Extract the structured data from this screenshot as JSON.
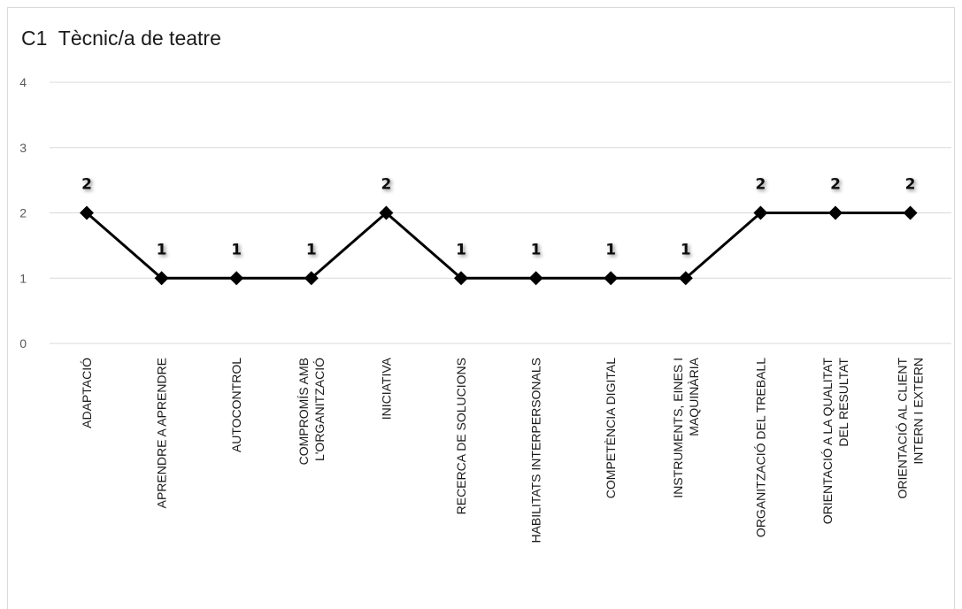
{
  "chart_data": {
    "type": "line",
    "title": "C1  Tècnic/a de teatre",
    "xlabel": "",
    "ylabel": "",
    "ylim": [
      0,
      4
    ],
    "yticks": [
      0,
      1,
      2,
      3,
      4
    ],
    "grid": true,
    "legend": "none",
    "categories": [
      [
        "ADAPTACIÓ"
      ],
      [
        "APRENDRE A APRENDRE"
      ],
      [
        "AUTOCONTROL"
      ],
      [
        "COMPROMÍS AMB",
        "L'ORGANITZACIÓ"
      ],
      [
        "INICIATIVA"
      ],
      [
        "RECERCA DE SOLUCIONS"
      ],
      [
        "HABILITATS INTERPERSONALS"
      ],
      [
        "COMPETÈNCIA DIGITAL"
      ],
      [
        "INSTRUMENTS, EINES I",
        "MAQUINÀRIA"
      ],
      [
        "ORGANITZACIÓ DEL TREBALL"
      ],
      [
        "ORIENTACIÓ A LA QUALITAT",
        "DEL RESULTAT"
      ],
      [
        "ORIENTACIÓ AL CLIENT",
        "INTERN I EXTERN"
      ]
    ],
    "series": [
      {
        "values": [
          2,
          1,
          1,
          1,
          2,
          1,
          1,
          1,
          1,
          2,
          2,
          2
        ]
      }
    ],
    "colors": {
      "line": "#000000",
      "grid": "#d9d9d9",
      "ticks": "#595959"
    }
  }
}
